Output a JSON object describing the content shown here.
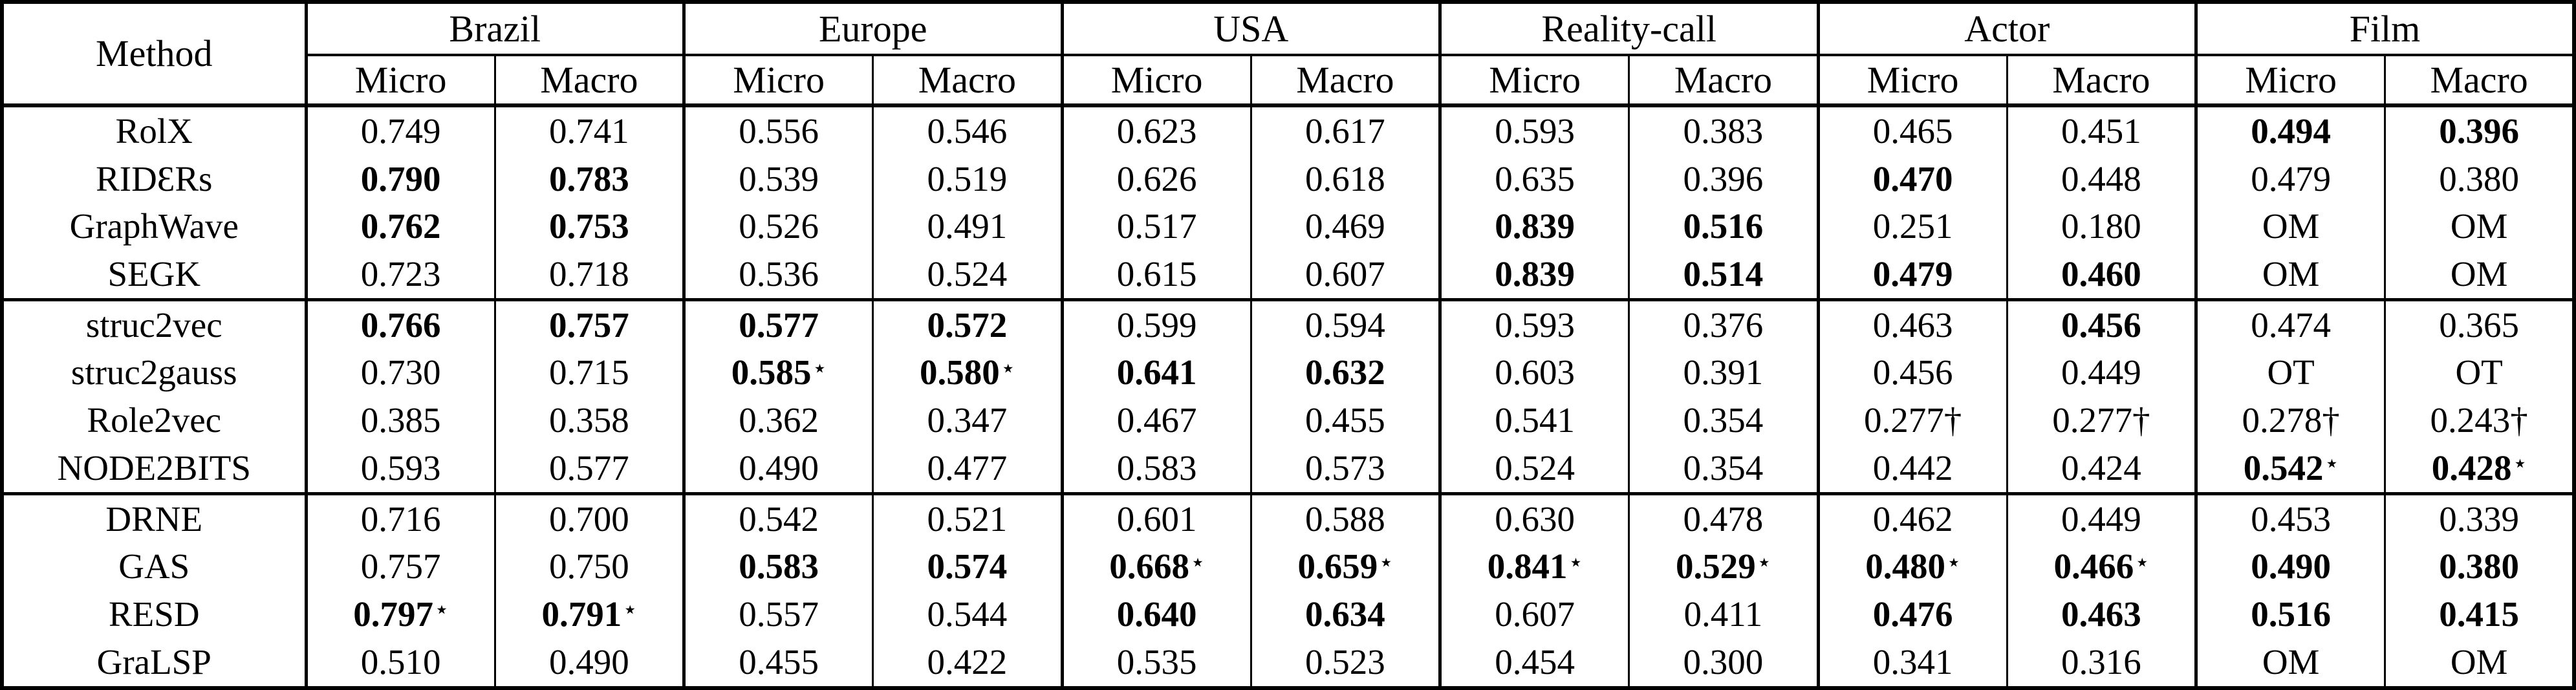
{
  "table": {
    "method_header": "Method",
    "datasets": [
      "Brazil",
      "Europe",
      "USA",
      "Reality-call",
      "Actor",
      "Film"
    ],
    "sub_headers": [
      "Micro",
      "Macro"
    ],
    "group_starts": [
      4,
      8
    ],
    "star_symbol": "⋆",
    "rows": [
      {
        "method": "RolX",
        "cells": [
          {
            "v": "0.749"
          },
          {
            "v": "0.741"
          },
          {
            "v": "0.556"
          },
          {
            "v": "0.546"
          },
          {
            "v": "0.623"
          },
          {
            "v": "0.617"
          },
          {
            "v": "0.593"
          },
          {
            "v": "0.383"
          },
          {
            "v": "0.465"
          },
          {
            "v": "0.451"
          },
          {
            "v": "0.494",
            "b": true
          },
          {
            "v": "0.396",
            "b": true
          }
        ]
      },
      {
        "method": "RIDƐRs",
        "cells": [
          {
            "v": "0.790",
            "b": true
          },
          {
            "v": "0.783",
            "b": true
          },
          {
            "v": "0.539"
          },
          {
            "v": "0.519"
          },
          {
            "v": "0.626"
          },
          {
            "v": "0.618"
          },
          {
            "v": "0.635"
          },
          {
            "v": "0.396"
          },
          {
            "v": "0.470",
            "b": true
          },
          {
            "v": "0.448"
          },
          {
            "v": "0.479"
          },
          {
            "v": "0.380"
          }
        ]
      },
      {
        "method": "GraphWave",
        "cells": [
          {
            "v": "0.762",
            "b": true
          },
          {
            "v": "0.753",
            "b": true
          },
          {
            "v": "0.526"
          },
          {
            "v": "0.491"
          },
          {
            "v": "0.517"
          },
          {
            "v": "0.469"
          },
          {
            "v": "0.839",
            "b": true
          },
          {
            "v": "0.516",
            "b": true
          },
          {
            "v": "0.251"
          },
          {
            "v": "0.180"
          },
          {
            "v": "OM"
          },
          {
            "v": "OM"
          }
        ]
      },
      {
        "method": "SEGK",
        "cells": [
          {
            "v": "0.723"
          },
          {
            "v": "0.718"
          },
          {
            "v": "0.536"
          },
          {
            "v": "0.524"
          },
          {
            "v": "0.615"
          },
          {
            "v": "0.607"
          },
          {
            "v": "0.839",
            "b": true
          },
          {
            "v": "0.514",
            "b": true
          },
          {
            "v": "0.479",
            "b": true
          },
          {
            "v": "0.460",
            "b": true
          },
          {
            "v": "OM"
          },
          {
            "v": "OM"
          }
        ]
      },
      {
        "method": "struc2vec",
        "cells": [
          {
            "v": "0.766",
            "b": true
          },
          {
            "v": "0.757",
            "b": true
          },
          {
            "v": "0.577",
            "b": true
          },
          {
            "v": "0.572",
            "b": true
          },
          {
            "v": "0.599"
          },
          {
            "v": "0.594"
          },
          {
            "v": "0.593"
          },
          {
            "v": "0.376"
          },
          {
            "v": "0.463"
          },
          {
            "v": "0.456",
            "b": true
          },
          {
            "v": "0.474"
          },
          {
            "v": "0.365"
          }
        ]
      },
      {
        "method": "struc2gauss",
        "cells": [
          {
            "v": "0.730"
          },
          {
            "v": "0.715"
          },
          {
            "v": "0.585",
            "b": true,
            "sup": "⋆"
          },
          {
            "v": "0.580",
            "b": true,
            "sup": "⋆"
          },
          {
            "v": "0.641",
            "b": true
          },
          {
            "v": "0.632",
            "b": true
          },
          {
            "v": "0.603"
          },
          {
            "v": "0.391"
          },
          {
            "v": "0.456"
          },
          {
            "v": "0.449"
          },
          {
            "v": "OT"
          },
          {
            "v": "OT"
          }
        ]
      },
      {
        "method": "Role2vec",
        "cells": [
          {
            "v": "0.385"
          },
          {
            "v": "0.358"
          },
          {
            "v": "0.362"
          },
          {
            "v": "0.347"
          },
          {
            "v": "0.467"
          },
          {
            "v": "0.455"
          },
          {
            "v": "0.541"
          },
          {
            "v": "0.354"
          },
          {
            "v": "0.277†"
          },
          {
            "v": "0.277†"
          },
          {
            "v": "0.278†"
          },
          {
            "v": "0.243†"
          }
        ]
      },
      {
        "method": "NODE2BITS",
        "cells": [
          {
            "v": "0.593"
          },
          {
            "v": "0.577"
          },
          {
            "v": "0.490"
          },
          {
            "v": "0.477"
          },
          {
            "v": "0.583"
          },
          {
            "v": "0.573"
          },
          {
            "v": "0.524"
          },
          {
            "v": "0.354"
          },
          {
            "v": "0.442"
          },
          {
            "v": "0.424"
          },
          {
            "v": "0.542",
            "b": true,
            "sup": "⋆"
          },
          {
            "v": "0.428",
            "b": true,
            "sup": "⋆"
          }
        ]
      },
      {
        "method": "DRNE",
        "cells": [
          {
            "v": "0.716"
          },
          {
            "v": "0.700"
          },
          {
            "v": "0.542"
          },
          {
            "v": "0.521"
          },
          {
            "v": "0.601"
          },
          {
            "v": "0.588"
          },
          {
            "v": "0.630"
          },
          {
            "v": "0.478"
          },
          {
            "v": "0.462"
          },
          {
            "v": "0.449"
          },
          {
            "v": "0.453"
          },
          {
            "v": "0.339"
          }
        ]
      },
      {
        "method": "GAS",
        "cells": [
          {
            "v": "0.757"
          },
          {
            "v": "0.750"
          },
          {
            "v": "0.583",
            "b": true
          },
          {
            "v": "0.574",
            "b": true
          },
          {
            "v": "0.668",
            "b": true,
            "sup": "⋆"
          },
          {
            "v": "0.659",
            "b": true,
            "sup": "⋆"
          },
          {
            "v": "0.841",
            "b": true,
            "sup": "⋆"
          },
          {
            "v": "0.529",
            "b": true,
            "sup": "⋆"
          },
          {
            "v": "0.480",
            "b": true,
            "sup": "⋆"
          },
          {
            "v": "0.466",
            "b": true,
            "sup": "⋆"
          },
          {
            "v": "0.490",
            "b": true
          },
          {
            "v": "0.380",
            "b": true
          }
        ]
      },
      {
        "method": "RESD",
        "cells": [
          {
            "v": "0.797",
            "b": true,
            "sup": "⋆"
          },
          {
            "v": "0.791",
            "b": true,
            "sup": "⋆"
          },
          {
            "v": "0.557"
          },
          {
            "v": "0.544"
          },
          {
            "v": "0.640",
            "b": true
          },
          {
            "v": "0.634",
            "b": true
          },
          {
            "v": "0.607"
          },
          {
            "v": "0.411"
          },
          {
            "v": "0.476",
            "b": true
          },
          {
            "v": "0.463",
            "b": true
          },
          {
            "v": "0.516",
            "b": true
          },
          {
            "v": "0.415",
            "b": true
          }
        ]
      },
      {
        "method": "GraLSP",
        "cells": [
          {
            "v": "0.510"
          },
          {
            "v": "0.490"
          },
          {
            "v": "0.455"
          },
          {
            "v": "0.422"
          },
          {
            "v": "0.535"
          },
          {
            "v": "0.523"
          },
          {
            "v": "0.454"
          },
          {
            "v": "0.300"
          },
          {
            "v": "0.341"
          },
          {
            "v": "0.316"
          },
          {
            "v": "OM"
          },
          {
            "v": "OM"
          }
        ]
      }
    ]
  }
}
